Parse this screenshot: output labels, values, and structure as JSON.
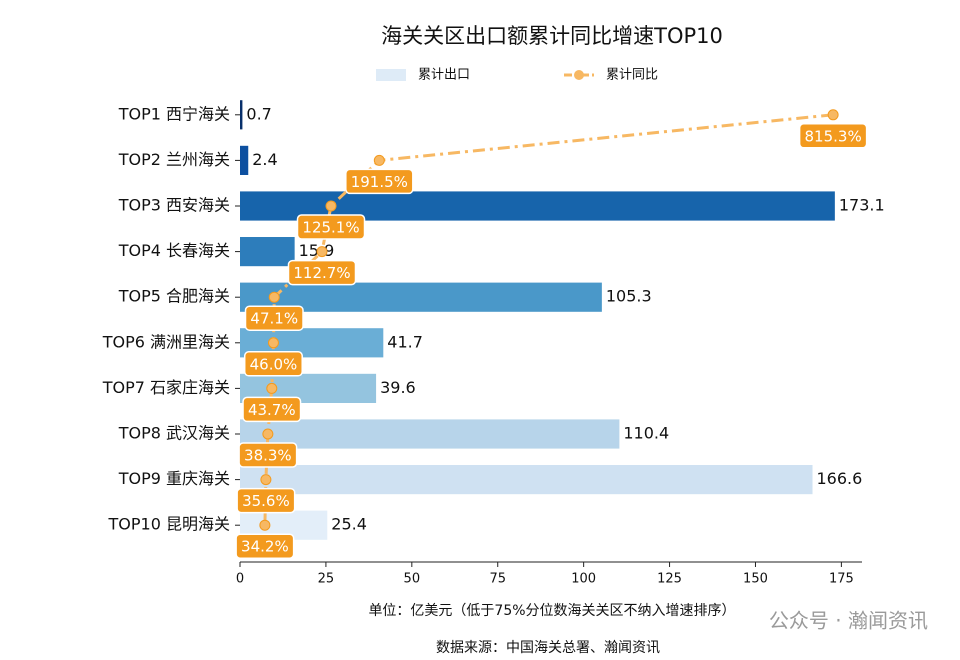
{
  "chart_data": {
    "type": "bar",
    "orientation": "horizontal",
    "title": "海关关区出口额累计同比增速TOP10",
    "categories": [
      "TOP1 西宁海关",
      "TOP2 兰州海关",
      "TOP3 西安海关",
      "TOP4 长春海关",
      "TOP5 合肥海关",
      "TOP6 满洲里海关",
      "TOP7 石家庄海关",
      "TOP8 武汉海关",
      "TOP9 重庆海关",
      "TOP10 昆明海关"
    ],
    "series": [
      {
        "name": "累计出口",
        "type": "bar",
        "color": "#deebf7",
        "colors": [
          "#08306b",
          "#0d50a0",
          "#1764ab",
          "#2d7dbb",
          "#4a98c9",
          "#6aaed6",
          "#94c4df",
          "#b7d4ea",
          "#cfe1f2",
          "#e3eef9"
        ],
        "values": [
          0.7,
          2.4,
          173.1,
          15.9,
          105.3,
          41.7,
          39.6,
          110.4,
          166.6,
          25.4
        ]
      },
      {
        "name": "累计同比",
        "type": "line",
        "axis": "x2",
        "color": "#f7b863",
        "label_color": "#f39a1e",
        "linestyle": "dashdot",
        "values": [
          815.3,
          191.5,
          125.1,
          112.7,
          47.1,
          46.0,
          43.7,
          38.3,
          35.6,
          34.2
        ],
        "value_labels": [
          "815.3%",
          "191.5%",
          "125.1%",
          "112.7%",
          "47.1%",
          "46.0%",
          "43.7%",
          "38.3%",
          "35.6%",
          "34.2%"
        ]
      }
    ],
    "xlim": [
      0,
      181
    ],
    "xticks": [
      0,
      25,
      50,
      75,
      100,
      125,
      150,
      175
    ],
    "x2lim": [
      0,
      855
    ],
    "xlabel": "单位：亿美元（低于75%分位数海关关区不纳入增速排序）",
    "source": "数据来源：中国海关总署、瀚闻资讯",
    "watermark": "公众号 · 瀚闻资讯"
  }
}
